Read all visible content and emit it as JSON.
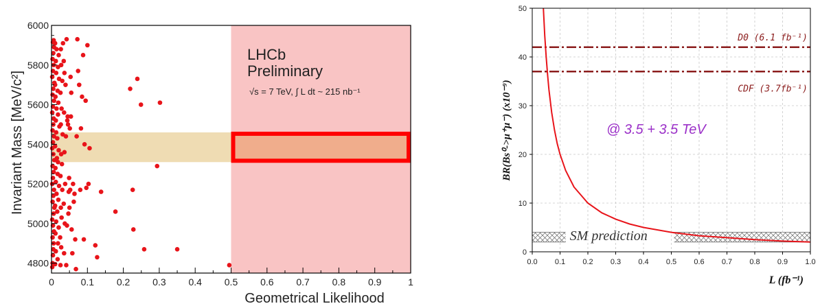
{
  "chart_data": [
    {
      "type": "scatter",
      "xlabel": "Geometrical Likelihood",
      "ylabel": "Invariant Mass [MeV/c²]",
      "xlim": [
        0,
        1
      ],
      "ylim": [
        4750,
        6000
      ],
      "xticks": [
        "0",
        "0.1",
        "0.2",
        "0.3",
        "0.4",
        "0.5",
        "0.6",
        "0.7",
        "0.8",
        "0.9",
        "1"
      ],
      "yticks": [
        "4800",
        "5000",
        "5200",
        "5400",
        "5600",
        "5800",
        "6000"
      ],
      "annotation": {
        "line1": "LHCb",
        "line2": "Preliminary",
        "line3": "√s = 7 TeV, ∫ L dt ~ 215 nb⁻¹"
      },
      "signal_region": {
        "x": [
          0.5,
          1.0
        ],
        "y": [
          4750,
          6000
        ]
      },
      "mass_window": {
        "y": [
          5310,
          5460
        ]
      },
      "colors": {
        "points": "#e8141a",
        "signal_region": "#f9c4c4",
        "window": "#efdcb3",
        "box": "#ff0000"
      },
      "points": [
        [
          0.002,
          4780
        ],
        [
          0.003,
          4800
        ],
        [
          0.004,
          4840
        ],
        [
          0.005,
          4870
        ],
        [
          0.006,
          4900
        ],
        [
          0.003,
          4930
        ],
        [
          0.007,
          4960
        ],
        [
          0.004,
          4990
        ],
        [
          0.002,
          5020
        ],
        [
          0.006,
          5050
        ],
        [
          0.008,
          5080
        ],
        [
          0.003,
          5110
        ],
        [
          0.005,
          5140
        ],
        [
          0.007,
          5170
        ],
        [
          0.002,
          5200
        ],
        [
          0.004,
          5230
        ],
        [
          0.006,
          5260
        ],
        [
          0.003,
          5290
        ],
        [
          0.008,
          5320
        ],
        [
          0.005,
          5350
        ],
        [
          0.002,
          5380
        ],
        [
          0.004,
          5410
        ],
        [
          0.007,
          5440
        ],
        [
          0.003,
          5470
        ],
        [
          0.005,
          5500
        ],
        [
          0.006,
          5530
        ],
        [
          0.002,
          5560
        ],
        [
          0.004,
          5590
        ],
        [
          0.007,
          5620
        ],
        [
          0.003,
          5650
        ],
        [
          0.005,
          5680
        ],
        [
          0.008,
          5710
        ],
        [
          0.002,
          5740
        ],
        [
          0.004,
          5770
        ],
        [
          0.006,
          5800
        ],
        [
          0.003,
          5830
        ],
        [
          0.005,
          5860
        ],
        [
          0.007,
          5890
        ],
        [
          0.004,
          5915
        ],
        [
          0.006,
          5925
        ],
        [
          0.01,
          4795
        ],
        [
          0.012,
          4860
        ],
        [
          0.011,
          4950
        ],
        [
          0.013,
          5010
        ],
        [
          0.01,
          5090
        ],
        [
          0.014,
          5150
        ],
        [
          0.012,
          5210
        ],
        [
          0.011,
          5280
        ],
        [
          0.015,
          5330
        ],
        [
          0.01,
          5390
        ],
        [
          0.013,
          5460
        ],
        [
          0.012,
          5520
        ],
        [
          0.014,
          5580
        ],
        [
          0.011,
          5640
        ],
        [
          0.01,
          5700
        ],
        [
          0.013,
          5760
        ],
        [
          0.012,
          5820
        ],
        [
          0.014,
          5880
        ],
        [
          0.01,
          5910
        ],
        [
          0.017,
          4820
        ],
        [
          0.018,
          4900
        ],
        [
          0.02,
          4980
        ],
        [
          0.016,
          5060
        ],
        [
          0.019,
          5120
        ],
        [
          0.021,
          5190
        ],
        [
          0.017,
          5250
        ],
        [
          0.018,
          5310
        ],
        [
          0.02,
          5370
        ],
        [
          0.016,
          5430
        ],
        [
          0.022,
          5490
        ],
        [
          0.018,
          5550
        ],
        [
          0.019,
          5610
        ],
        [
          0.017,
          5670
        ],
        [
          0.021,
          5730
        ],
        [
          0.018,
          5790
        ],
        [
          0.02,
          5850
        ],
        [
          0.025,
          4790
        ],
        [
          0.027,
          4880
        ],
        [
          0.024,
          4930
        ],
        [
          0.028,
          5030
        ],
        [
          0.026,
          5080
        ],
        [
          0.03,
          5170
        ],
        [
          0.025,
          5240
        ],
        [
          0.029,
          5300
        ],
        [
          0.027,
          5350
        ],
        [
          0.031,
          5450
        ],
        [
          0.026,
          5500
        ],
        [
          0.028,
          5580
        ],
        [
          0.025,
          5660
        ],
        [
          0.03,
          5720
        ],
        [
          0.027,
          5800
        ],
        [
          0.026,
          5880
        ],
        [
          0.032,
          5910
        ],
        [
          0.035,
          4850
        ],
        [
          0.037,
          5000
        ],
        [
          0.034,
          5100
        ],
        [
          0.038,
          5200
        ],
        [
          0.036,
          5360
        ],
        [
          0.04,
          5440
        ],
        [
          0.035,
          5560
        ],
        [
          0.039,
          5700
        ],
        [
          0.036,
          5760
        ],
        [
          0.034,
          5820
        ],
        [
          0.042,
          5930
        ],
        [
          0.044,
          5520
        ],
        [
          0.046,
          5500
        ],
        [
          0.045,
          5540
        ],
        [
          0.048,
          5160
        ],
        [
          0.043,
          4990
        ],
        [
          0.041,
          4790
        ],
        [
          0.047,
          5050
        ],
        [
          0.05,
          5080
        ],
        [
          0.052,
          5170
        ],
        [
          0.049,
          5230
        ],
        [
          0.051,
          5480
        ],
        [
          0.054,
          5540
        ],
        [
          0.055,
          5660
        ],
        [
          0.053,
          5740
        ],
        [
          0.056,
          4970
        ],
        [
          0.058,
          4850
        ],
        [
          0.06,
          5200
        ],
        [
          0.062,
          5110
        ],
        [
          0.064,
          5150
        ],
        [
          0.066,
          4920
        ],
        [
          0.068,
          4770
        ],
        [
          0.07,
          5440
        ],
        [
          0.072,
          5930
        ],
        [
          0.074,
          5770
        ],
        [
          0.077,
          5700
        ],
        [
          0.08,
          5170
        ],
        [
          0.082,
          5480
        ],
        [
          0.085,
          5640
        ],
        [
          0.088,
          5850
        ],
        [
          0.09,
          4920
        ],
        [
          0.092,
          5400
        ],
        [
          0.095,
          5620
        ],
        [
          0.097,
          5180
        ],
        [
          0.1,
          5900
        ],
        [
          0.103,
          5200
        ],
        [
          0.106,
          5380
        ],
        [
          0.122,
          4890
        ],
        [
          0.127,
          4830
        ],
        [
          0.138,
          5160
        ],
        [
          0.178,
          5060
        ],
        [
          0.219,
          5680
        ],
        [
          0.226,
          5170
        ],
        [
          0.228,
          4970
        ],
        [
          0.239,
          5730
        ],
        [
          0.249,
          5600
        ],
        [
          0.258,
          4870
        ],
        [
          0.294,
          5290
        ],
        [
          0.302,
          5610
        ],
        [
          0.35,
          4870
        ],
        [
          0.495,
          4790
        ]
      ]
    },
    {
      "type": "line",
      "xlabel": "L (fb⁻¹)",
      "ylabel": "BR(Bs⁰->μ⁺μ⁻)  (x10⁻⁹)",
      "xlim": [
        0,
        1.0
      ],
      "ylim": [
        0,
        50
      ],
      "xticks": [
        "0.0",
        "0.1",
        "0.2",
        "0.3",
        "0.4",
        "0.5",
        "0.6",
        "0.7",
        "0.8",
        "0.9",
        "1.0"
      ],
      "yticks": [
        "0",
        "10",
        "20",
        "30",
        "40",
        "50"
      ],
      "series": [
        {
          "color": "#e8141a",
          "x": [
            0.04,
            0.045,
            0.05,
            0.055,
            0.06,
            0.07,
            0.08,
            0.09,
            0.1,
            0.12,
            0.15,
            0.2,
            0.25,
            0.3,
            0.35,
            0.4,
            0.5,
            0.6,
            0.7,
            0.8,
            0.9,
            1.0
          ],
          "y": [
            50.0,
            44.4,
            40.0,
            36.4,
            33.3,
            28.6,
            25.0,
            22.2,
            20.0,
            16.7,
            13.3,
            10.0,
            8.0,
            6.7,
            5.7,
            5.0,
            4.0,
            3.3,
            2.9,
            2.5,
            2.2,
            2.0
          ]
        }
      ],
      "reference_lines": [
        {
          "label": "D0 (6.1 fb⁻¹)",
          "y": 42,
          "color": "#8b1c1c"
        },
        {
          "label": "CDF (3.7fb⁻¹)",
          "y": 37,
          "color": "#8b1c1c"
        }
      ],
      "band": {
        "label": "SM prediction",
        "y": [
          2.0,
          4.0
        ]
      },
      "annotation": "@ 3.5 + 3.5 TeV",
      "annotation_color": "#9b30c8"
    }
  ]
}
